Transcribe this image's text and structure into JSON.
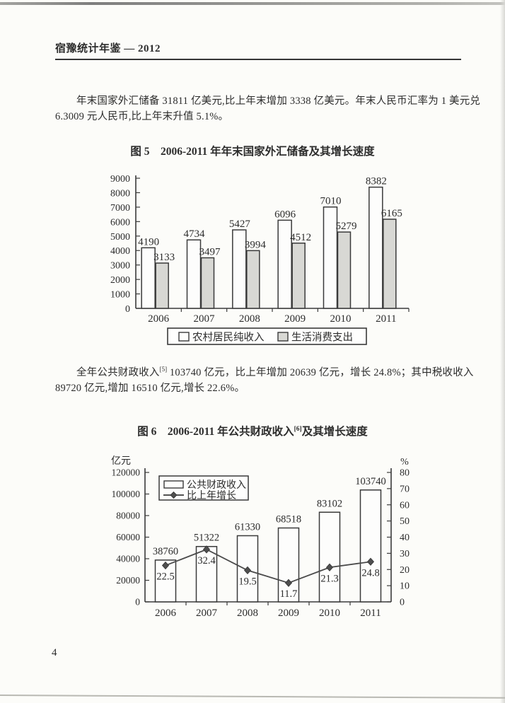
{
  "page": {
    "header_title": "宿豫统计年鉴 — 2012",
    "page_number": "4"
  },
  "paragraphs": {
    "p1_line1": "年末国家外汇储备 31811 亿美元,比上年末增加 3338 亿美元。年末人民币汇率为 1 美元兑",
    "p1_line2": "6.3009 元人民币,比上年末升值 5.1%。",
    "p2_line1_pre": "全年公共财政收入",
    "p2_line1_sup": "[5]",
    "p2_line1_post": " 103740 亿元，比上年增加 20639 亿元，增长 24.8%；其中税收收入",
    "p2_line2": "89720 亿元,增加 16510 亿元,增长 22.6%。"
  },
  "figures": {
    "fig5_title": "图 5　2006-2011 年年末国家外汇储备及其增长速度",
    "fig6_title_pre": "图 6　2006-2011 年公共财政收入",
    "fig6_title_sup": "[6]",
    "fig6_title_post": "及其增长速度"
  },
  "chart_data": [
    {
      "id": "fig5",
      "type": "bar",
      "title": "图 5 2006-2011 年年末国家外汇储备及其增长速度",
      "categories": [
        "2006",
        "2007",
        "2008",
        "2009",
        "2010",
        "2011"
      ],
      "series": [
        {
          "name": "农村居民纯收入",
          "fill": "white",
          "values": [
            4190,
            4734,
            5427,
            6096,
            7010,
            8382
          ]
        },
        {
          "name": "生活消费支出",
          "fill": "gray",
          "values": [
            3133,
            3497,
            3994,
            4512,
            5279,
            6165
          ]
        }
      ],
      "ylim": [
        0,
        9000
      ],
      "ytick_step": 1000,
      "legend_position": "bottom",
      "grid": false
    },
    {
      "id": "fig6",
      "type": "bar+line",
      "title": "图 6 2006-2011 年公共财政收入[6]及其增长速度",
      "categories": [
        "2006",
        "2007",
        "2008",
        "2009",
        "2010",
        "2011"
      ],
      "series": [
        {
          "name": "公共财政收入",
          "type": "bar",
          "axis": "left",
          "values": [
            38760,
            51322,
            61330,
            68518,
            83102,
            103740
          ]
        },
        {
          "name": "比上年增长",
          "type": "line",
          "axis": "right",
          "values": [
            22.5,
            32.4,
            19.5,
            11.7,
            21.3,
            24.8
          ]
        }
      ],
      "left_axis": {
        "label": "亿元",
        "lim": [
          0,
          120000
        ],
        "step": 20000
      },
      "right_axis": {
        "label": "%",
        "lim": [
          0,
          80
        ],
        "step": 10
      },
      "legend_position": "top-left",
      "grid": false
    }
  ],
  "colors": {
    "ink": "#2c2c2c",
    "axis": "#3a3a3a",
    "bar_white": "#fdfdfc",
    "bar_gray": "#d8d8d4",
    "line_series": "#4a4a4a"
  }
}
